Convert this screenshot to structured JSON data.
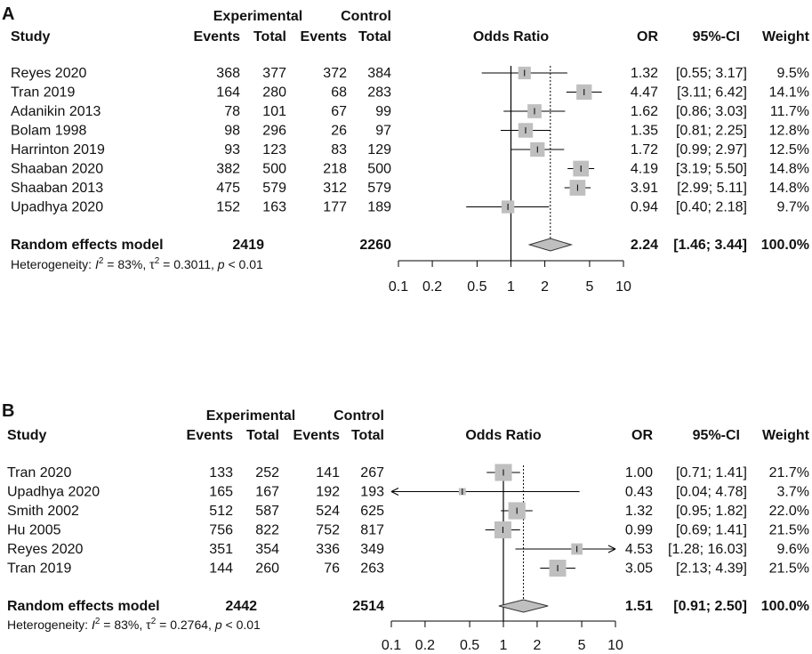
{
  "chart_data": [
    {
      "type": "forest",
      "panel_label": "A",
      "headers": {
        "experimental": "Experimental",
        "control": "Control",
        "study": "Study",
        "events": "Events",
        "total": "Total",
        "odds_ratio": "Odds Ratio",
        "or": "OR",
        "ci": "95%-CI",
        "weight": "Weight"
      },
      "studies": [
        {
          "name": "Reyes 2020",
          "exp_events": "368",
          "exp_total": "377",
          "ctl_events": "372",
          "ctl_total": "384",
          "or_text": "1.32",
          "ci_text": "[0.55; 3.17]",
          "weight_text": "9.5%",
          "or": 1.32,
          "lower": 0.55,
          "upper": 3.17,
          "weight": 9.5
        },
        {
          "name": "Tran 2019",
          "exp_events": "164",
          "exp_total": "280",
          "ctl_events": "68",
          "ctl_total": "283",
          "or_text": "4.47",
          "ci_text": "[3.11; 6.42]",
          "weight_text": "14.1%",
          "or": 4.47,
          "lower": 3.11,
          "upper": 6.42,
          "weight": 14.1
        },
        {
          "name": "Adanikin 2013",
          "exp_events": "78",
          "exp_total": "101",
          "ctl_events": "67",
          "ctl_total": "99",
          "or_text": "1.62",
          "ci_text": "[0.86; 3.03]",
          "weight_text": "11.7%",
          "or": 1.62,
          "lower": 0.86,
          "upper": 3.03,
          "weight": 11.7
        },
        {
          "name": "Bolam 1998",
          "exp_events": "98",
          "exp_total": "296",
          "ctl_events": "26",
          "ctl_total": "97",
          "or_text": "1.35",
          "ci_text": "[0.81; 2.25]",
          "weight_text": "12.8%",
          "or": 1.35,
          "lower": 0.81,
          "upper": 2.25,
          "weight": 12.8
        },
        {
          "name": "Harrinton 2019",
          "exp_events": "93",
          "exp_total": "123",
          "ctl_events": "83",
          "ctl_total": "129",
          "or_text": "1.72",
          "ci_text": "[0.99; 2.97]",
          "weight_text": "12.5%",
          "or": 1.72,
          "lower": 0.99,
          "upper": 2.97,
          "weight": 12.5
        },
        {
          "name": "Shaaban 2020",
          "exp_events": "382",
          "exp_total": "500",
          "ctl_events": "218",
          "ctl_total": "500",
          "or_text": "4.19",
          "ci_text": "[3.19; 5.50]",
          "weight_text": "14.8%",
          "or": 4.19,
          "lower": 3.19,
          "upper": 5.5,
          "weight": 14.8
        },
        {
          "name": "Shaaban 2013",
          "exp_events": "475",
          "exp_total": "579",
          "ctl_events": "312",
          "ctl_total": "579",
          "or_text": "3.91",
          "ci_text": "[2.99; 5.11]",
          "weight_text": "14.8%",
          "or": 3.91,
          "lower": 2.99,
          "upper": 5.11,
          "weight": 14.8
        },
        {
          "name": "Upadhya 2020",
          "exp_events": "152",
          "exp_total": "163",
          "ctl_events": "177",
          "ctl_total": "189",
          "or_text": "0.94",
          "ci_text": "[0.40; 2.18]",
          "weight_text": "9.7%",
          "or": 0.94,
          "lower": 0.4,
          "upper": 2.18,
          "weight": 9.7
        }
      ],
      "model": {
        "label": "Random effects model",
        "exp_total": "2419",
        "ctl_total": "2260",
        "or_text": "2.24",
        "ci_text": "[1.46; 3.44]",
        "weight_text": "100.0%",
        "or": 2.24,
        "lower": 1.46,
        "upper": 3.44
      },
      "heterogeneity": {
        "prefix": "Heterogeneity: ",
        "i2_symbol": "I",
        "i2_value": " = 83%, ",
        "tau_symbol": "τ",
        "tau_value": " = 0.3011, ",
        "p_symbol": "p",
        "p_value": " < 0.01"
      },
      "x_scale": "log",
      "x_range": [
        0.1,
        10
      ],
      "x_ticks": [
        0.1,
        0.2,
        0.5,
        1,
        2,
        5,
        10
      ],
      "x_tick_labels": [
        "0.1",
        "0.2",
        "0.5",
        "1",
        "2",
        "5",
        "10"
      ],
      "box_color": "#bfbfbf",
      "diamond_color": "#bfbfbf"
    },
    {
      "type": "forest",
      "panel_label": "B",
      "headers": {
        "experimental": "Experimental",
        "control": "Control",
        "study": "Study",
        "events": "Events",
        "total": "Total",
        "odds_ratio": "Odds Ratio",
        "or": "OR",
        "ci": "95%-CI",
        "weight": "Weight"
      },
      "studies": [
        {
          "name": "Tran 2020",
          "exp_events": "133",
          "exp_total": "252",
          "ctl_events": "141",
          "ctl_total": "267",
          "or_text": "1.00",
          "ci_text": "[0.71; 1.41]",
          "weight_text": "21.7%",
          "or": 1.0,
          "lower": 0.71,
          "upper": 1.41,
          "weight": 21.7
        },
        {
          "name": "Upadhya 2020",
          "exp_events": "165",
          "exp_total": "167",
          "ctl_events": "192",
          "ctl_total": "193",
          "or_text": "0.43",
          "ci_text": "[0.04; 4.78]",
          "weight_text": "3.7%",
          "or": 0.43,
          "lower": 0.04,
          "upper": 4.78,
          "weight": 3.7
        },
        {
          "name": "Smith 2002",
          "exp_events": "512",
          "exp_total": "587",
          "ctl_events": "524",
          "ctl_total": "625",
          "or_text": "1.32",
          "ci_text": "[0.95; 1.82]",
          "weight_text": "22.0%",
          "or": 1.32,
          "lower": 0.95,
          "upper": 1.82,
          "weight": 22.0
        },
        {
          "name": "Hu 2005",
          "exp_events": "756",
          "exp_total": "822",
          "ctl_events": "752",
          "ctl_total": "817",
          "or_text": "0.99",
          "ci_text": "[0.69; 1.41]",
          "weight_text": "21.5%",
          "or": 0.99,
          "lower": 0.69,
          "upper": 1.41,
          "weight": 21.5
        },
        {
          "name": "Reyes 2020",
          "exp_events": "351",
          "exp_total": "354",
          "ctl_events": "336",
          "ctl_total": "349",
          "or_text": "4.53",
          "ci_text": "[1.28; 16.03]",
          "weight_text": "9.6%",
          "or": 4.53,
          "lower": 1.28,
          "upper": 16.03,
          "weight": 9.6
        },
        {
          "name": "Tran 2019",
          "exp_events": "144",
          "exp_total": "260",
          "ctl_events": "76",
          "ctl_total": "263",
          "or_text": "3.05",
          "ci_text": "[2.13; 4.39]",
          "weight_text": "21.5%",
          "or": 3.05,
          "lower": 2.13,
          "upper": 4.39,
          "weight": 21.5
        }
      ],
      "model": {
        "label": "Random effects model",
        "exp_total": "2442",
        "ctl_total": "2514",
        "or_text": "1.51",
        "ci_text": "[0.91; 2.50]",
        "weight_text": "100.0%",
        "or": 1.51,
        "lower": 0.91,
        "upper": 2.5
      },
      "heterogeneity": {
        "prefix": "Heterogeneity: ",
        "i2_symbol": "I",
        "i2_value": " = 83%, ",
        "tau_symbol": "τ",
        "tau_value": " = 0.2764, ",
        "p_symbol": "p",
        "p_value": " < 0.01"
      },
      "x_scale": "log",
      "x_range": [
        0.1,
        10
      ],
      "x_ticks": [
        0.1,
        0.2,
        0.5,
        1,
        2,
        5,
        10
      ],
      "x_tick_labels": [
        "0.1",
        "0.2",
        "0.5",
        "1",
        "2",
        "5",
        "10"
      ],
      "box_color": "#bfbfbf",
      "diamond_color": "#bfbfbf"
    }
  ]
}
